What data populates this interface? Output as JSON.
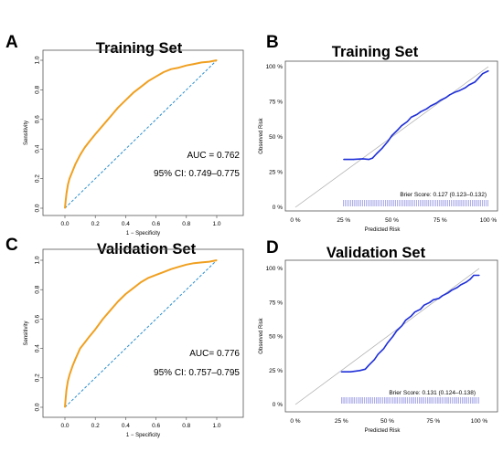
{
  "chart_data": [
    {
      "panel": "A",
      "type": "line",
      "kind": "roc",
      "title": "Training Set",
      "xlabel": "1 − Specificity",
      "ylabel": "Sensitivity",
      "xlim": [
        0,
        1
      ],
      "ylim": [
        0,
        1
      ],
      "xticks": [
        "0.0",
        "0.2",
        "0.4",
        "0.6",
        "0.8",
        "1.0"
      ],
      "yticks": [
        "0.0",
        "0.2",
        "0.4",
        "0.6",
        "0.8",
        "1.0"
      ],
      "annotations": [
        "AUC = 0.762",
        "95% CI: 0.749–0.775"
      ],
      "series": [
        {
          "color": "#f0a020",
          "x": [
            0,
            0.005,
            0.01,
            0.02,
            0.03,
            0.05,
            0.07,
            0.1,
            0.13,
            0.16,
            0.2,
            0.25,
            0.3,
            0.35,
            0.4,
            0.45,
            0.5,
            0.55,
            0.6,
            0.65,
            0.7,
            0.75,
            0.8,
            0.85,
            0.9,
            0.95,
            1.0
          ],
          "y": [
            0,
            0.05,
            0.1,
            0.16,
            0.2,
            0.25,
            0.3,
            0.36,
            0.41,
            0.45,
            0.5,
            0.56,
            0.62,
            0.68,
            0.73,
            0.78,
            0.82,
            0.86,
            0.89,
            0.92,
            0.94,
            0.95,
            0.965,
            0.975,
            0.985,
            0.99,
            1.0
          ]
        }
      ],
      "diagonal": {
        "color": "#2a8fd0"
      }
    },
    {
      "panel": "B",
      "type": "line",
      "kind": "calibration",
      "title": "Training Set",
      "xlabel": "Predicted Risk",
      "ylabel": "Observed Risk",
      "xlim": [
        0,
        100
      ],
      "ylim": [
        0,
        100
      ],
      "xticks": [
        "0 %",
        "25 %",
        "50 %",
        "75 %",
        "100 %"
      ],
      "yticks": [
        "0 %",
        "25 %",
        "50 %",
        "75 %",
        "100 %"
      ],
      "annotations": [
        "Brier Score: 0.127 (0.123–0.132)"
      ],
      "rug": {
        "from": 25,
        "to": 100
      },
      "series": [
        {
          "color": "#1e2fd8",
          "x": [
            25,
            30,
            35,
            38,
            40,
            42,
            45,
            48,
            50,
            53,
            55,
            58,
            60,
            63,
            65,
            68,
            70,
            73,
            75,
            78,
            80,
            83,
            85,
            88,
            90,
            93,
            95,
            97,
            100
          ],
          "y": [
            34,
            34,
            34.5,
            34,
            35,
            38,
            42,
            47,
            51,
            55,
            58,
            61,
            64,
            66,
            68,
            70,
            72,
            74,
            76,
            78,
            80,
            82,
            83,
            85,
            87,
            89,
            92,
            95,
            97
          ]
        }
      ]
    },
    {
      "panel": "C",
      "type": "line",
      "kind": "roc",
      "title": "Validation Set",
      "xlabel": "1 − Specificity",
      "ylabel": "Sensitivity",
      "xlim": [
        0,
        1
      ],
      "ylim": [
        0,
        1
      ],
      "xticks": [
        "0.0",
        "0.2",
        "0.4",
        "0.6",
        "0.8",
        "1.0"
      ],
      "yticks": [
        "0.0",
        "0.2",
        "0.4",
        "0.6",
        "0.8",
        "1.0"
      ],
      "annotations": [
        "AUC= 0.776",
        "95% CI: 0.757–0.795"
      ],
      "series": [
        {
          "color": "#f0a020",
          "x": [
            0,
            0.005,
            0.01,
            0.02,
            0.03,
            0.05,
            0.07,
            0.1,
            0.13,
            0.16,
            0.2,
            0.25,
            0.3,
            0.35,
            0.4,
            0.45,
            0.5,
            0.55,
            0.6,
            0.65,
            0.7,
            0.75,
            0.8,
            0.85,
            0.9,
            0.95,
            1.0
          ],
          "y": [
            0,
            0.06,
            0.12,
            0.18,
            0.22,
            0.28,
            0.33,
            0.4,
            0.44,
            0.48,
            0.53,
            0.6,
            0.66,
            0.72,
            0.77,
            0.81,
            0.85,
            0.88,
            0.9,
            0.92,
            0.94,
            0.955,
            0.97,
            0.98,
            0.985,
            0.99,
            1.0
          ]
        }
      ],
      "diagonal": {
        "color": "#2a8fd0"
      }
    },
    {
      "panel": "D",
      "type": "line",
      "kind": "calibration",
      "title": "Validation Set",
      "xlabel": "Predicted Risk",
      "ylabel": "Observed Risk",
      "xlim": [
        0,
        100
      ],
      "ylim": [
        0,
        100
      ],
      "xticks": [
        "0 %",
        "25 %",
        "50 %",
        "75 %",
        "100 %"
      ],
      "yticks": [
        "0 %",
        "25 %",
        "50 %",
        "75 %",
        "100 %"
      ],
      "annotations": [
        "Brier Score: 0.131 (0.124–0.138)"
      ],
      "rug": {
        "from": 25,
        "to": 100
      },
      "series": [
        {
          "color": "#1e2fd8",
          "x": [
            25,
            30,
            35,
            38,
            40,
            43,
            45,
            48,
            50,
            53,
            55,
            58,
            60,
            63,
            65,
            68,
            70,
            73,
            75,
            78,
            80,
            83,
            85,
            88,
            90,
            93,
            95,
            97,
            100
          ],
          "y": [
            24,
            24,
            25,
            26,
            29,
            33,
            37,
            41,
            45,
            50,
            54,
            58,
            62,
            65,
            68,
            70,
            73,
            75,
            77,
            78,
            80,
            82,
            84,
            86,
            88,
            90,
            92,
            95,
            95
          ]
        }
      ]
    }
  ]
}
